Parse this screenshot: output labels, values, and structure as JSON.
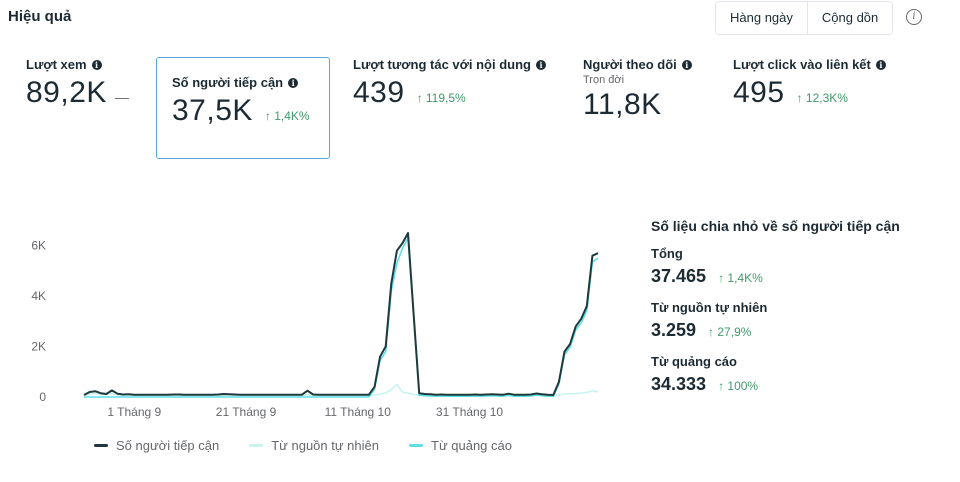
{
  "header": {
    "title": "Hiệu quả",
    "toggle_daily": "Hàng ngày",
    "toggle_cumulative": "Cộng dồn",
    "info_icon": "i"
  },
  "metrics": [
    {
      "label": "Lượt xem",
      "sub": "",
      "value": "89,2K",
      "change": "",
      "dash": "—",
      "selected": false
    },
    {
      "label": "Số người tiếp cận",
      "sub": "",
      "value": "37,5K",
      "change": "↑ 1,4K%",
      "dash": "",
      "selected": true
    },
    {
      "label": "Lượt tương tác với nội dung",
      "sub": "",
      "value": "439",
      "change": "↑ 119,5%",
      "dash": "",
      "selected": false
    },
    {
      "label": "Người theo dõi",
      "sub": "Trọn đời",
      "value": "11,8K",
      "change": "",
      "dash": "",
      "selected": false
    },
    {
      "label": "Lượt click vào liên kết",
      "sub": "",
      "value": "495",
      "change": "↑ 12,3K%",
      "dash": "",
      "selected": false
    }
  ],
  "breakdown": {
    "title": "Số liệu chia nhỏ về số người tiếp cận",
    "items": [
      {
        "label": "Tổng",
        "value": "37.465",
        "change": "↑ 1,4K%"
      },
      {
        "label": "Từ nguồn tự nhiên",
        "value": "3.259",
        "change": "↑ 27,9%"
      },
      {
        "label": "Từ quảng cáo",
        "value": "34.333",
        "change": "↑ 100%"
      }
    ]
  },
  "colors": {
    "reach": "#1f3a3d",
    "organic": "#c8f3f1",
    "ads": "#5ee0e6",
    "positive": "#3f9a6a",
    "selected_border": "#5aa8d6"
  },
  "chart_data": {
    "type": "line",
    "title": "",
    "xlabel": "",
    "ylabel": "",
    "ylim": [
      0,
      6000
    ],
    "y_ticks": [
      0,
      2000,
      4000,
      6000
    ],
    "y_tick_labels": [
      "0",
      "2K",
      "4K",
      "6K"
    ],
    "x_tick_labels": [
      {
        "label": "1 Tháng 9",
        "index": 9
      },
      {
        "label": "21 Tháng 9",
        "index": 29
      },
      {
        "label": "11 Tháng 10",
        "index": 49
      },
      {
        "label": "31 Tháng 10",
        "index": 69
      }
    ],
    "legend_position": "bottom",
    "series": [
      {
        "name": "Số người tiếp cận",
        "color": "#1f3a3d",
        "values": [
          80,
          200,
          230,
          150,
          120,
          260,
          130,
          100,
          110,
          90,
          90,
          90,
          90,
          90,
          90,
          90,
          100,
          100,
          90,
          90,
          90,
          90,
          90,
          90,
          100,
          120,
          110,
          100,
          90,
          90,
          90,
          90,
          90,
          90,
          90,
          90,
          90,
          90,
          90,
          90,
          250,
          100,
          90,
          90,
          90,
          90,
          90,
          90,
          90,
          90,
          90,
          90,
          400,
          1600,
          2000,
          4500,
          5800,
          6100,
          6500,
          3300,
          150,
          120,
          110,
          90,
          100,
          90,
          90,
          90,
          90,
          90,
          100,
          90,
          100,
          110,
          100,
          90,
          130,
          90,
          90,
          90,
          100,
          140,
          110,
          90,
          80,
          600,
          1800,
          2100,
          2800,
          3100,
          3600,
          5600,
          5700
        ]
      },
      {
        "name": "Từ nguồn tự nhiên",
        "color": "#c8f3f1",
        "values": [
          60,
          120,
          140,
          100,
          90,
          160,
          90,
          70,
          70,
          60,
          60,
          60,
          60,
          60,
          60,
          60,
          60,
          60,
          60,
          60,
          60,
          60,
          60,
          60,
          60,
          70,
          70,
          60,
          60,
          60,
          60,
          60,
          60,
          60,
          60,
          60,
          60,
          60,
          60,
          60,
          90,
          60,
          60,
          60,
          60,
          60,
          60,
          60,
          60,
          60,
          60,
          60,
          80,
          120,
          160,
          300,
          500,
          200,
          150,
          100,
          80,
          70,
          60,
          60,
          60,
          60,
          60,
          60,
          60,
          60,
          60,
          60,
          60,
          60,
          60,
          60,
          60,
          60,
          60,
          60,
          60,
          60,
          60,
          60,
          60,
          80,
          120,
          130,
          140,
          160,
          180,
          250,
          200
        ]
      },
      {
        "name": "Từ quảng cáo",
        "color": "#5ee0e6",
        "values": [
          0,
          0,
          0,
          0,
          0,
          0,
          0,
          0,
          0,
          0,
          0,
          0,
          0,
          0,
          0,
          0,
          0,
          0,
          0,
          0,
          0,
          0,
          0,
          0,
          0,
          0,
          0,
          0,
          0,
          0,
          0,
          0,
          0,
          0,
          0,
          0,
          0,
          0,
          0,
          0,
          0,
          0,
          0,
          0,
          0,
          0,
          0,
          0,
          0,
          0,
          0,
          0,
          300,
          1450,
          1800,
          4200,
          5300,
          5900,
          6300,
          3200,
          70,
          50,
          40,
          30,
          40,
          30,
          30,
          30,
          30,
          30,
          40,
          30,
          40,
          50,
          40,
          30,
          70,
          30,
          30,
          30,
          40,
          80,
          50,
          30,
          20,
          520,
          1680,
          1970,
          2660,
          2940,
          3420,
          5350,
          5500
        ]
      }
    ]
  }
}
